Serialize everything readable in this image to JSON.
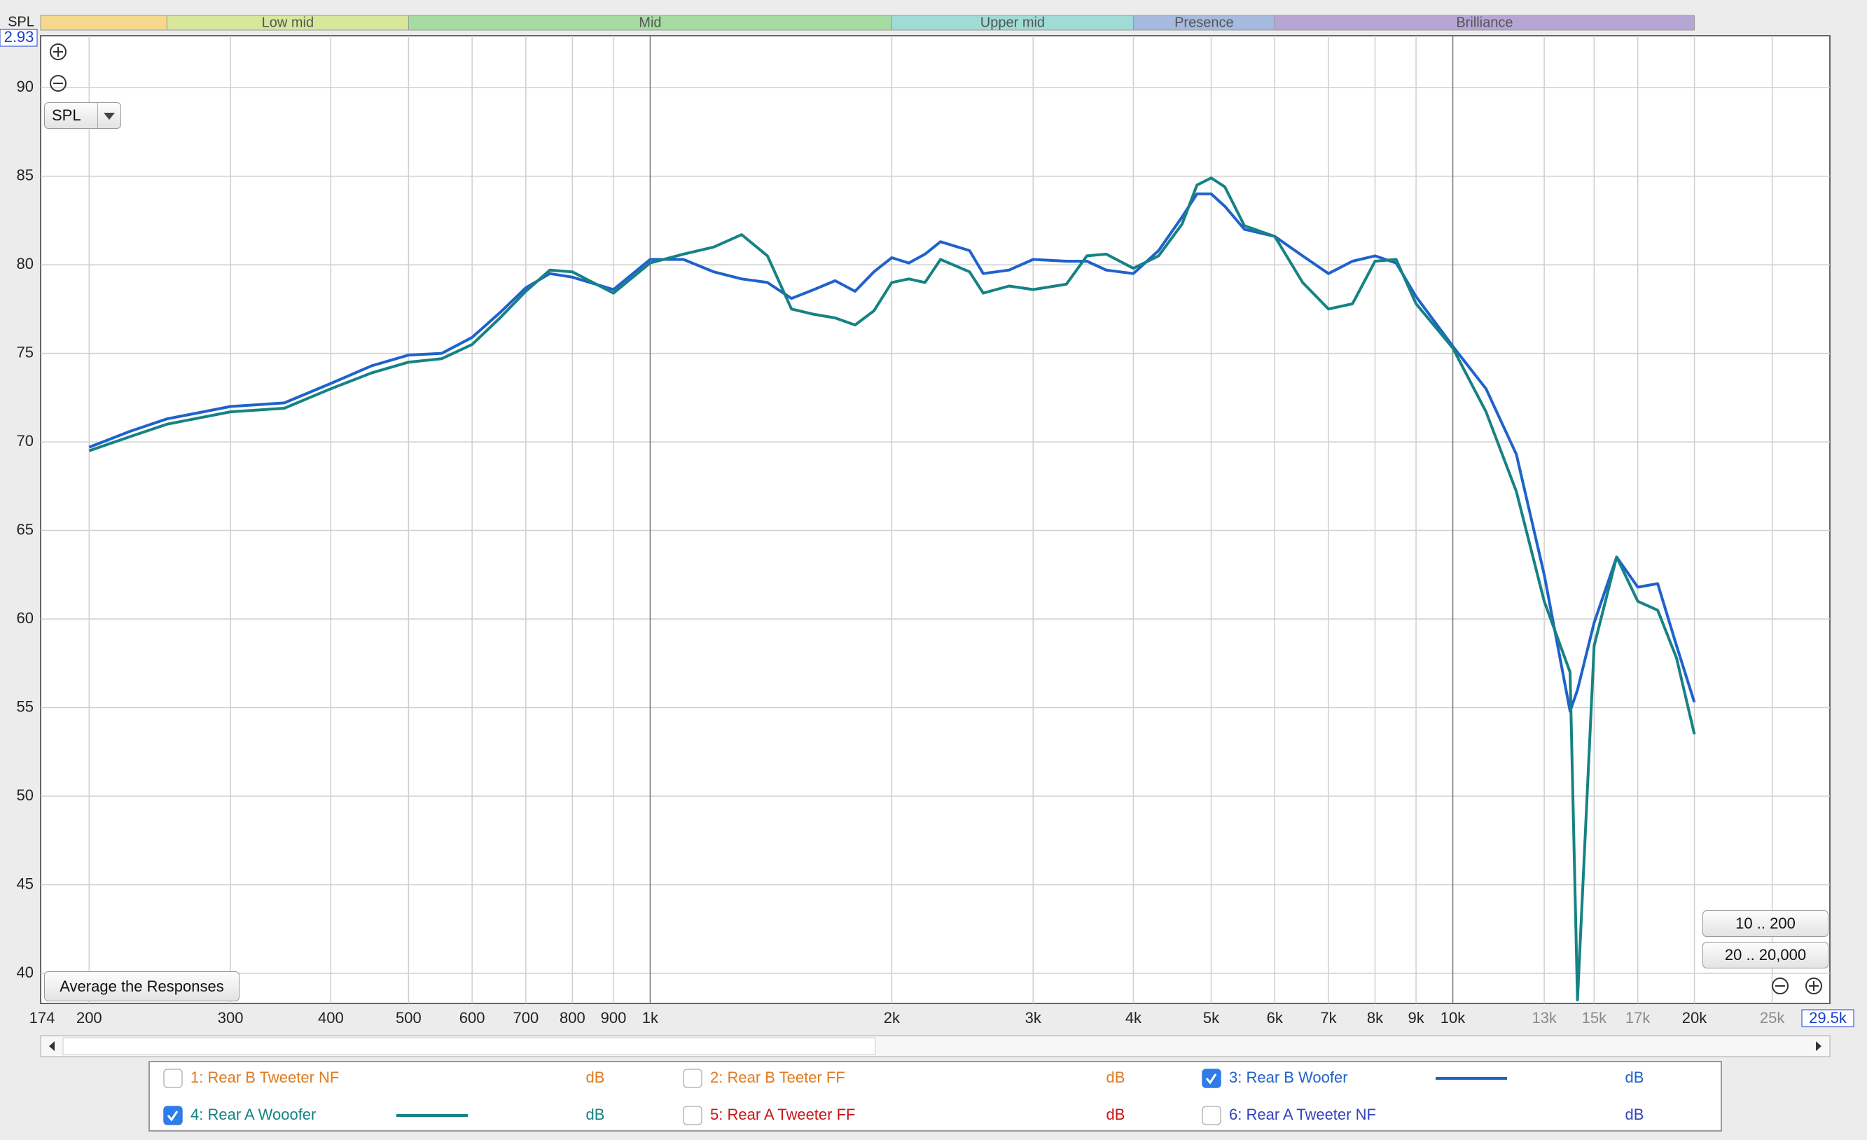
{
  "chart_data": {
    "type": "line",
    "y_label": "SPL",
    "xscale": "log",
    "grid": true,
    "xlim": [
      174,
      29500
    ],
    "ylim": [
      38.3,
      92.93
    ],
    "yticks": [
      40,
      45,
      50,
      55,
      60,
      65,
      70,
      75,
      80,
      85,
      90,
      {
        "value": 92.93,
        "label": "2.93"
      }
    ],
    "xticks": [
      174,
      200,
      300,
      400,
      500,
      600,
      700,
      800,
      900,
      {
        "value": 1000,
        "label": "1k"
      },
      {
        "value": 2000,
        "label": "2k"
      },
      {
        "value": 3000,
        "label": "3k"
      },
      {
        "value": 4000,
        "label": "4k"
      },
      {
        "value": 5000,
        "label": "5k"
      },
      {
        "value": 6000,
        "label": "6k"
      },
      {
        "value": 7000,
        "label": "7k"
      },
      {
        "value": 8000,
        "label": "8k"
      },
      {
        "value": 9000,
        "label": "9k"
      },
      {
        "value": 10000,
        "label": "10k"
      },
      {
        "value": 20000,
        "label": "20k"
      },
      {
        "value": 29500,
        "label": "29.5k"
      }
    ],
    "xticks_minor": [
      {
        "value": 13000,
        "label": "13k"
      },
      {
        "value": 15000,
        "label": "15k"
      },
      {
        "value": 17000,
        "label": "17k"
      },
      {
        "value": 25000,
        "label": "25k"
      }
    ],
    "bands": {
      "edges": [
        174,
        250,
        500,
        2000,
        4000,
        6000,
        20000
      ],
      "labels": [
        null,
        "Low mid",
        "Mid",
        "Upper mid",
        "Presence",
        "Brilliance"
      ],
      "colors": [
        "#f4d98c",
        "#d8e79c",
        "#a6dca2",
        "#a0dbd6",
        "#a6badf",
        "#b7a6d5"
      ]
    },
    "x": [
      200,
      225,
      250,
      300,
      350,
      400,
      450,
      500,
      550,
      600,
      650,
      700,
      750,
      800,
      900,
      1000,
      1100,
      1200,
      1300,
      1400,
      1500,
      1600,
      1700,
      1800,
      1900,
      2000,
      2100,
      2200,
      2300,
      2500,
      2600,
      2800,
      3000,
      3300,
      3500,
      3700,
      4000,
      4300,
      4600,
      4800,
      5000,
      5200,
      5500,
      6000,
      6500,
      7000,
      7500,
      8000,
      8500,
      9000,
      10000,
      11000,
      12000,
      13000,
      14000,
      14300,
      15000,
      16000,
      17000,
      18000,
      19000,
      20000
    ],
    "series": [
      {
        "name": "1: Rear B Tweeter NF",
        "unit": "dB",
        "color": "#e07a1f",
        "checked": false
      },
      {
        "name": "2: Rear B Teeter FF",
        "unit": "dB",
        "color": "#e07a1f",
        "checked": false
      },
      {
        "name": "3: Rear B Woofer",
        "unit": "dB",
        "color": "#1f62cc",
        "checked": true,
        "values": [
          69.7,
          70.6,
          71.3,
          72.0,
          72.2,
          73.3,
          74.3,
          74.9,
          75.0,
          75.9,
          77.3,
          78.7,
          79.5,
          79.3,
          78.6,
          80.3,
          80.3,
          79.6,
          79.2,
          79.0,
          78.1,
          78.6,
          79.1,
          78.5,
          79.6,
          80.4,
          80.1,
          80.6,
          81.3,
          80.8,
          79.5,
          79.7,
          80.3,
          80.2,
          80.2,
          79.7,
          79.5,
          80.8,
          82.7,
          84.0,
          84.0,
          83.3,
          82.0,
          81.6,
          80.5,
          79.5,
          80.2,
          80.5,
          80.1,
          78.2,
          75.4,
          73.0,
          69.3,
          62.5,
          54.8,
          56.0,
          59.8,
          63.5,
          61.8,
          62.0,
          58.5,
          55.3
        ]
      },
      {
        "name": "4: Rear A Wooofer",
        "unit": "dB",
        "color": "#168283",
        "checked": true,
        "values": [
          69.5,
          70.3,
          71.0,
          71.7,
          71.9,
          73.0,
          73.9,
          74.5,
          74.7,
          75.5,
          77.0,
          78.5,
          79.7,
          79.6,
          78.4,
          80.1,
          80.6,
          81.0,
          81.7,
          80.5,
          77.5,
          77.2,
          77.0,
          76.6,
          77.4,
          79.0,
          79.2,
          79.0,
          80.3,
          79.6,
          78.4,
          78.8,
          78.6,
          78.9,
          80.5,
          80.6,
          79.8,
          80.5,
          82.3,
          84.5,
          84.9,
          84.4,
          82.2,
          81.6,
          79.0,
          77.5,
          77.8,
          80.2,
          80.3,
          77.8,
          75.3,
          71.7,
          67.2,
          61.0,
          57.0,
          38.5,
          58.5,
          63.5,
          61.0,
          60.5,
          57.8,
          53.5
        ]
      },
      {
        "name": "5: Rear A Tweeter FF",
        "unit": "dB",
        "color": "#c8161a",
        "checked": false
      },
      {
        "name": "6: Rear A Tweeter NF",
        "unit": "dB",
        "color": "#3343c2",
        "checked": false
      }
    ]
  },
  "controls": {
    "spl_select": "SPL",
    "average": "Average the Responses",
    "range_low": "10 .. 200",
    "range_full": "20 .. 20,000"
  }
}
